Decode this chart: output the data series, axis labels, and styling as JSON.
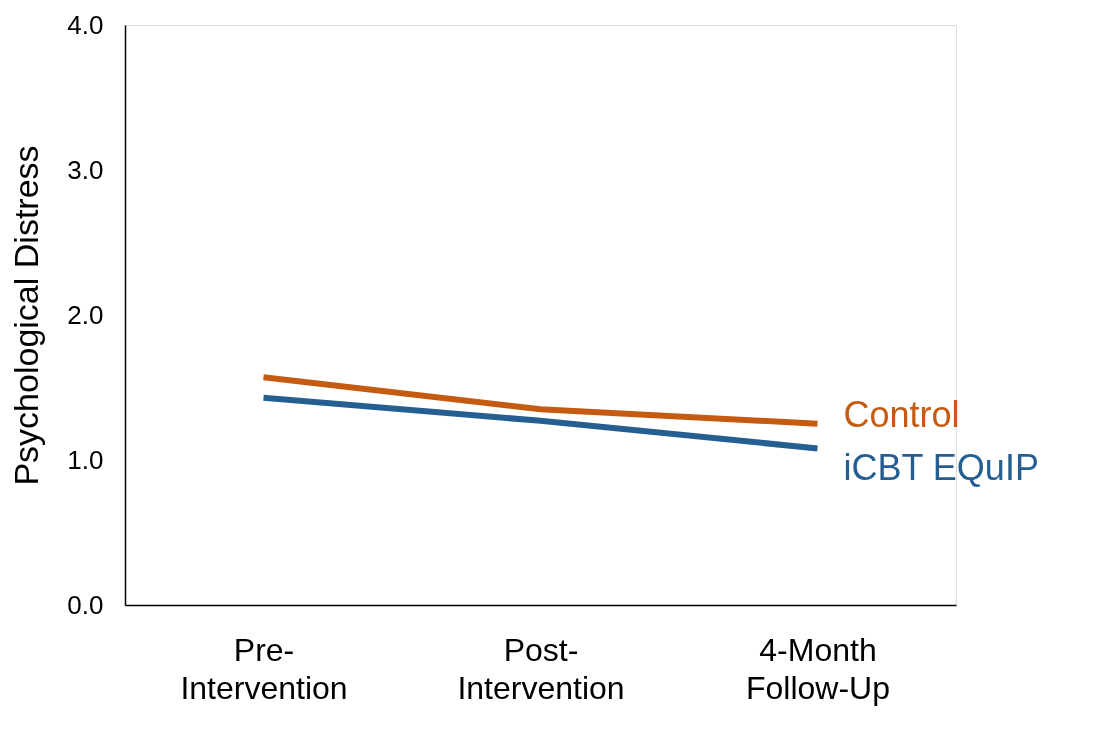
{
  "chart_data": {
    "type": "line",
    "ylabel": "Psychological Distress",
    "categories": [
      "Pre-\nIntervention",
      "Post-\nIntervention",
      "4-Month\nFollow-Up"
    ],
    "series": [
      {
        "name": "Control",
        "color": "#c55a11",
        "values": [
          1.57,
          1.35,
          1.25
        ]
      },
      {
        "name": "iCBT EQuIP",
        "color": "#255e91",
        "values": [
          1.43,
          1.27,
          1.08
        ]
      }
    ],
    "ylim": [
      0,
      4
    ],
    "yticks": [
      {
        "value": 0,
        "label": "0.0"
      },
      {
        "value": 1,
        "label": "1.0"
      },
      {
        "value": 2,
        "label": "2.0"
      },
      {
        "value": 3,
        "label": "3.0"
      },
      {
        "value": 4,
        "label": "4.0"
      }
    ],
    "grid": false,
    "marker": "none",
    "line_style": "solid"
  }
}
